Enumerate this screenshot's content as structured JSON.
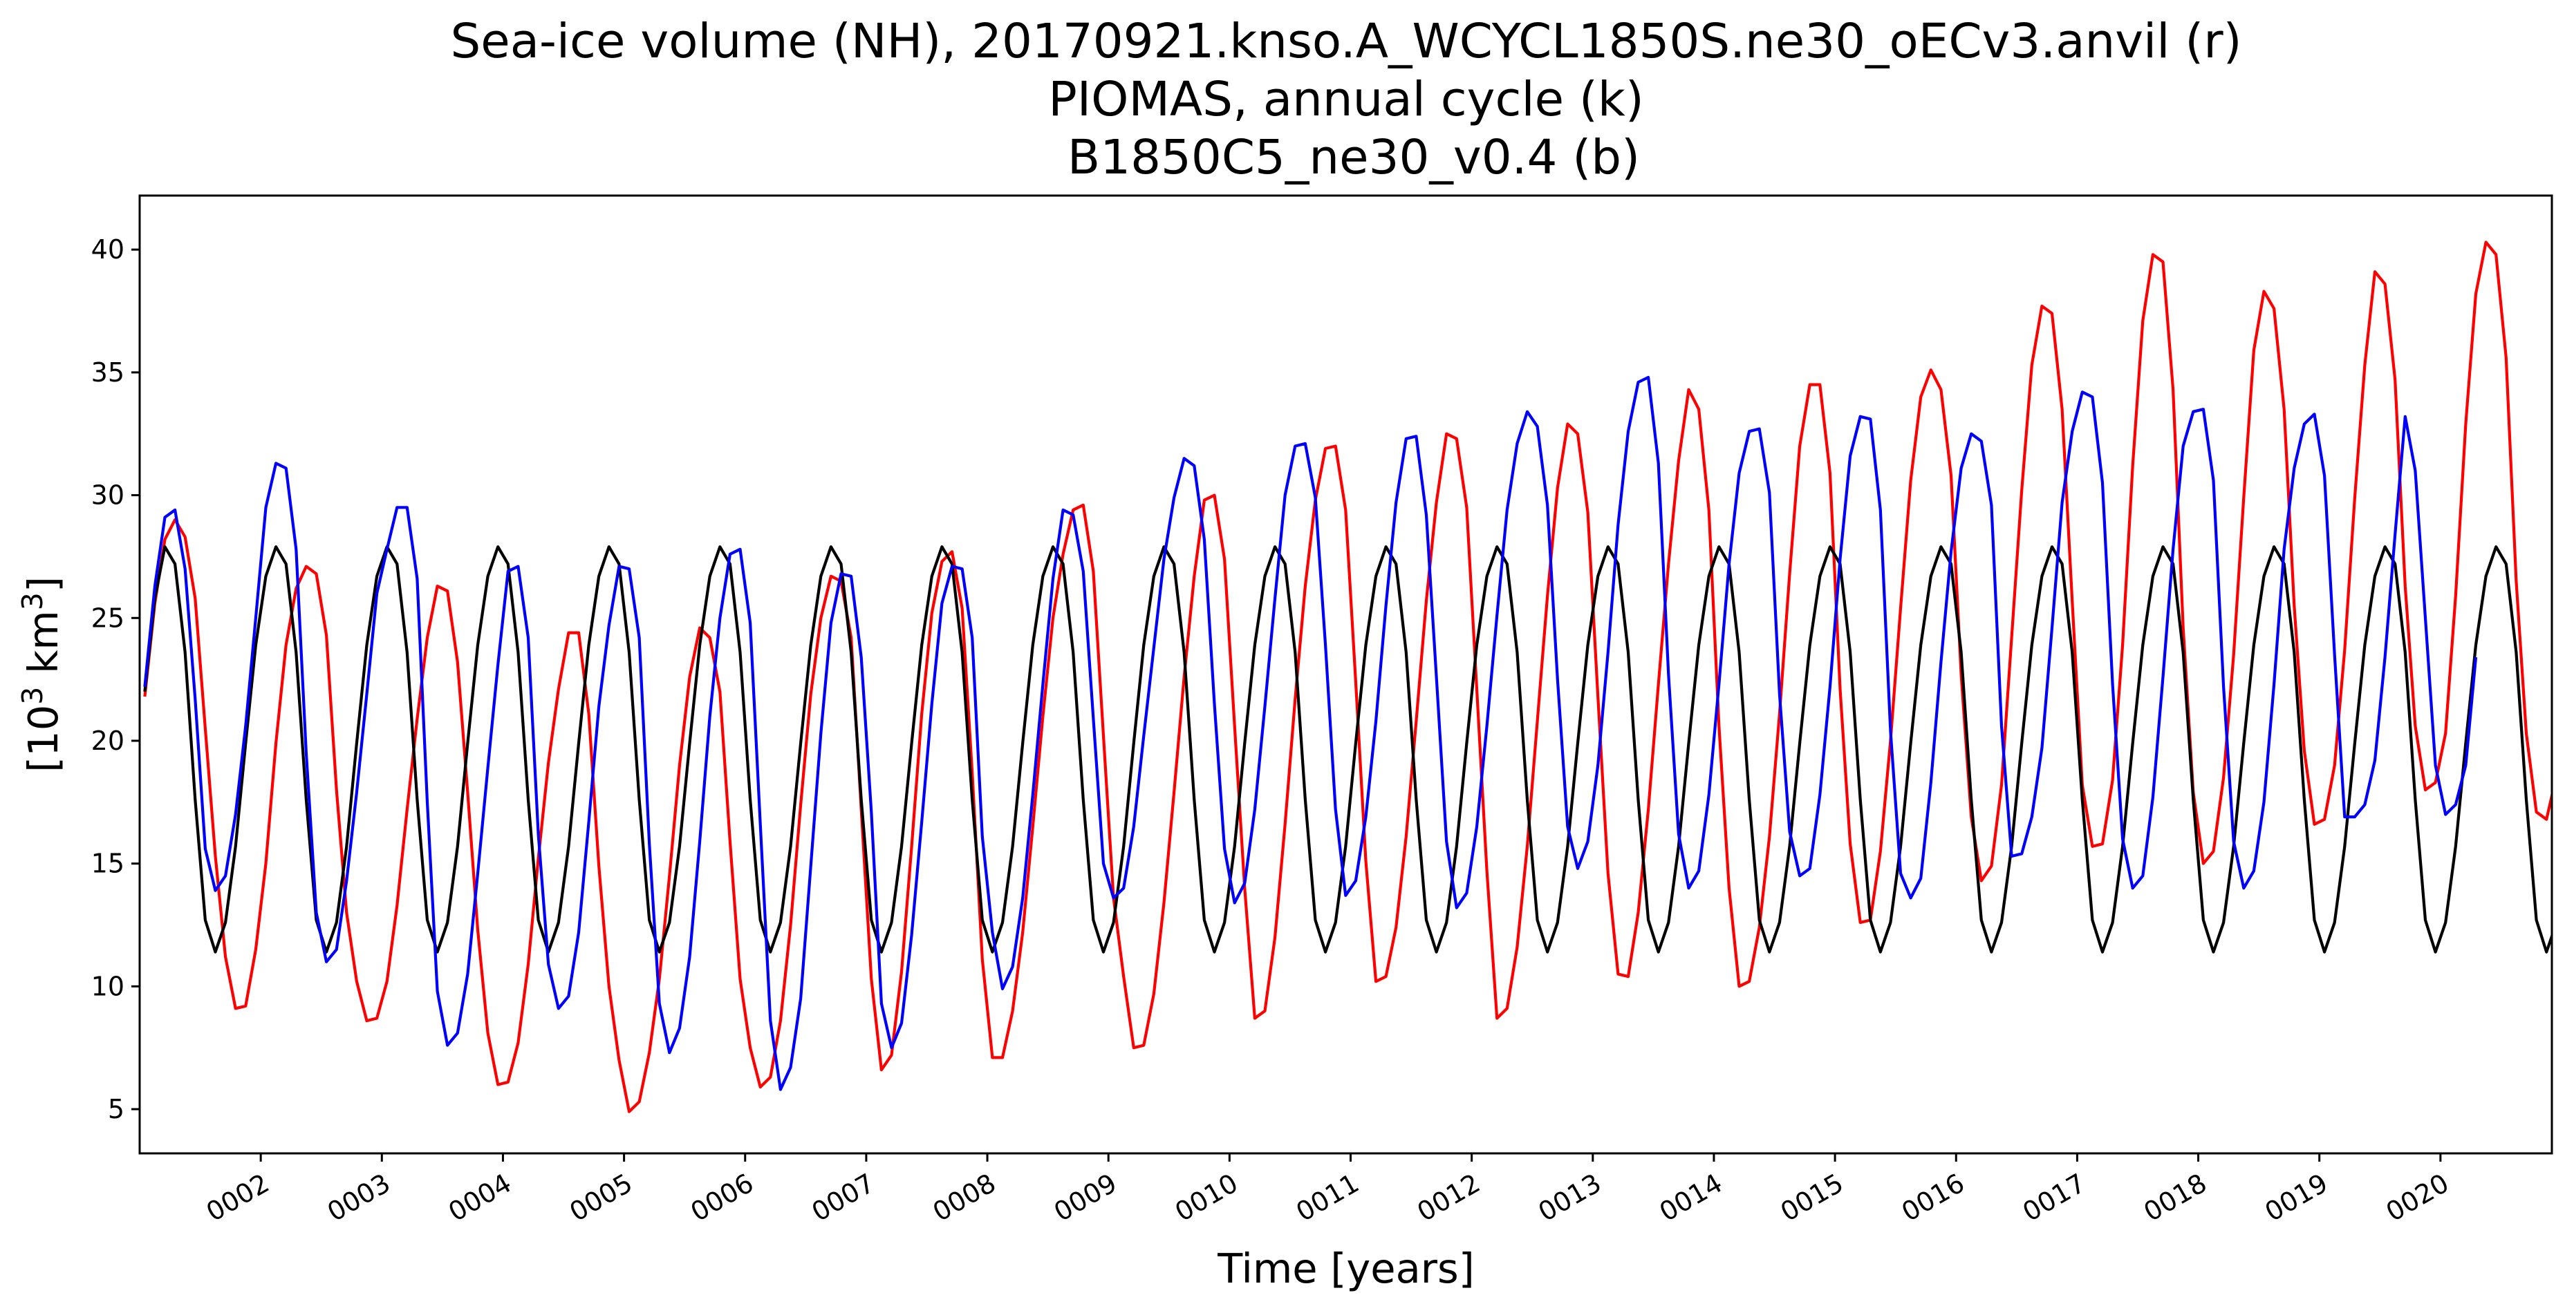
{
  "chart_data": {
    "type": "line",
    "title": [
      "Sea-ice volume (NH), 20170921.knso.A_WCYCL1850S.ne30_oECv3.anvil (r)",
      "PIOMAS, annual cycle (k)",
      " B1850C5_ne30_v0.4 (b)"
    ],
    "xlabel": "Time [years]",
    "ylabel": "[10³ km³]",
    "ylabel_parts": {
      "open": "[10",
      "exp1": "3",
      "mid": " km",
      "exp2": "3",
      "close": "]"
    },
    "xlim": [
      1.0,
      20.92
    ],
    "ylim": [
      3.2,
      42.2
    ],
    "x_ticks": [
      {
        "value": 2,
        "label": "0002"
      },
      {
        "value": 3,
        "label": "0003"
      },
      {
        "value": 4,
        "label": "0004"
      },
      {
        "value": 5,
        "label": "0005"
      },
      {
        "value": 6,
        "label": "0006"
      },
      {
        "value": 7,
        "label": "0007"
      },
      {
        "value": 8,
        "label": "0008"
      },
      {
        "value": 9,
        "label": "0009"
      },
      {
        "value": 10,
        "label": "0010"
      },
      {
        "value": 11,
        "label": "0011"
      },
      {
        "value": 12,
        "label": "0012"
      },
      {
        "value": 13,
        "label": "0013"
      },
      {
        "value": 14,
        "label": "0014"
      },
      {
        "value": 15,
        "label": "0015"
      },
      {
        "value": 16,
        "label": "0016"
      },
      {
        "value": 17,
        "label": "0017"
      },
      {
        "value": 18,
        "label": "0018"
      },
      {
        "value": 19,
        "label": "0019"
      },
      {
        "value": 20,
        "label": "0020"
      }
    ],
    "y_ticks": [
      {
        "value": 5,
        "label": "5"
      },
      {
        "value": 10,
        "label": "10"
      },
      {
        "value": 15,
        "label": "15"
      },
      {
        "value": 20,
        "label": "20"
      },
      {
        "value": 25,
        "label": "25"
      },
      {
        "value": 30,
        "label": "30"
      },
      {
        "value": 35,
        "label": "35"
      },
      {
        "value": 40,
        "label": "40"
      }
    ],
    "grid": false,
    "legend": "none",
    "series": [
      {
        "color": "#ff0000",
        "x_start": 1.042,
        "x_step": 0.0833333,
        "values": [
          21.8,
          25.6,
          28.2,
          29.0,
          28.3,
          25.8,
          20.5,
          15.3,
          11.2,
          9.1,
          9.2,
          11.5,
          15.0,
          19.9,
          23.9,
          26.2,
          27.1,
          26.8,
          24.3,
          18.0,
          13.0,
          10.2,
          8.6,
          8.7,
          10.2,
          13.3,
          17.2,
          20.9,
          24.2,
          26.3,
          26.1,
          23.2,
          17.9,
          12.3,
          8.1,
          6.0,
          6.1,
          7.7,
          10.9,
          15.2,
          19.1,
          22.1,
          24.4,
          24.4,
          21.1,
          14.9,
          10.0,
          7.0,
          4.9,
          5.3,
          7.3,
          10.3,
          14.5,
          19.0,
          22.6,
          24.6,
          24.2,
          22.0,
          15.9,
          10.3,
          7.5,
          5.9,
          6.3,
          8.6,
          12.5,
          17.4,
          21.9,
          25.0,
          26.7,
          26.5,
          24.2,
          17.2,
          10.3,
          6.6,
          7.2,
          10.6,
          15.7,
          21.1,
          25.2,
          27.3,
          27.7,
          25.4,
          18.7,
          11.1,
          7.1,
          7.1,
          9.0,
          12.2,
          16.5,
          21.0,
          25.0,
          27.6,
          29.4,
          29.6,
          26.9,
          20.2,
          13.6,
          10.4,
          7.5,
          7.6,
          9.7,
          13.4,
          17.9,
          22.6,
          26.7,
          29.8,
          30.0,
          27.4,
          20.6,
          14.0,
          8.7,
          9.0,
          12.0,
          16.6,
          21.7,
          26.3,
          29.8,
          31.9,
          32.0,
          29.4,
          22.4,
          15.1,
          10.2,
          10.4,
          12.4,
          16.1,
          20.8,
          25.7,
          29.7,
          32.5,
          32.3,
          29.5,
          22.1,
          14.7,
          8.7,
          9.1,
          11.6,
          15.7,
          20.8,
          25.9,
          30.3,
          32.9,
          32.5,
          29.3,
          21.8,
          14.6,
          10.5,
          10.4,
          13.0,
          17.2,
          22.3,
          27.2,
          31.4,
          34.3,
          33.5,
          29.4,
          20.6,
          14.0,
          10.0,
          10.2,
          12.4,
          16.1,
          21.1,
          26.8,
          32.0,
          34.5,
          34.5,
          30.9,
          22.1,
          15.8,
          12.6,
          12.7,
          15.5,
          20.0,
          25.4,
          30.6,
          34.0,
          35.1,
          34.3,
          30.8,
          22.7,
          16.9,
          14.3,
          14.9,
          18.2,
          24.2,
          30.2,
          35.3,
          37.7,
          37.4,
          33.5,
          25.7,
          18.2,
          15.7,
          15.8,
          18.4,
          23.9,
          31.2,
          37.1,
          39.8,
          39.5,
          34.3,
          24.6,
          17.9,
          15.0,
          15.5,
          18.5,
          23.5,
          29.9,
          35.9,
          38.3,
          37.6,
          33.5,
          25.5,
          19.6,
          16.6,
          16.8,
          19.0,
          23.7,
          29.9,
          35.3,
          39.1,
          38.6,
          34.7,
          26.3,
          20.6,
          18.0,
          18.3,
          20.3,
          25.9,
          32.9,
          38.2,
          40.3,
          39.8,
          35.6,
          26.5,
          20.3,
          17.1,
          16.8,
          18.6,
          21.8
        ]
      },
      {
        "color": "#000000",
        "x_start": 1.042,
        "x_step": 0.0833333,
        "values": [
          22.0,
          25.8,
          27.9,
          27.2,
          23.6,
          17.6,
          12.7,
          11.4,
          12.6,
          15.7,
          19.9,
          23.9,
          26.7,
          27.9,
          27.2,
          23.6,
          17.6,
          12.7,
          11.4,
          12.6,
          15.7,
          19.9,
          23.9,
          26.7,
          27.9,
          27.2,
          23.6,
          17.6,
          12.7,
          11.4,
          12.6,
          15.7,
          19.9,
          23.9,
          26.7,
          27.9,
          27.2,
          23.6,
          17.6,
          12.7,
          11.4,
          12.6,
          15.7,
          19.9,
          23.9,
          26.7,
          27.9,
          27.2,
          23.6,
          17.6,
          12.7,
          11.4,
          12.6,
          15.7,
          19.9,
          23.9,
          26.7,
          27.9,
          27.2,
          23.6,
          17.6,
          12.7,
          11.4,
          12.6,
          15.7,
          19.9,
          23.9,
          26.7,
          27.9,
          27.2,
          23.6,
          17.6,
          12.7,
          11.4,
          12.6,
          15.7,
          19.9,
          23.9,
          26.7,
          27.9,
          27.2,
          23.6,
          17.6,
          12.7,
          11.4,
          12.6,
          15.7,
          19.9,
          23.9,
          26.7,
          27.9,
          27.2,
          23.6,
          17.6,
          12.7,
          11.4,
          12.6,
          15.7,
          19.9,
          23.9,
          26.7,
          27.9,
          27.2,
          23.6,
          17.6,
          12.7,
          11.4,
          12.6,
          15.7,
          19.9,
          23.9,
          26.7,
          27.9,
          27.2,
          23.6,
          17.6,
          12.7,
          11.4,
          12.6,
          15.7,
          19.9,
          23.9,
          26.7,
          27.9,
          27.2,
          23.6,
          17.6,
          12.7,
          11.4,
          12.6,
          15.7,
          19.9,
          23.9,
          26.7,
          27.9,
          27.2,
          23.6,
          17.6,
          12.7,
          11.4,
          12.6,
          15.7,
          19.9,
          23.9,
          26.7,
          27.9,
          27.2,
          23.6,
          17.6,
          12.7,
          11.4,
          12.6,
          15.7,
          19.9,
          23.9,
          26.7,
          27.9,
          27.2,
          23.6,
          17.6,
          12.7,
          11.4,
          12.6,
          15.7,
          19.9,
          23.9,
          26.7,
          27.9,
          27.2,
          23.6,
          17.6,
          12.7,
          11.4,
          12.6,
          15.7,
          19.9,
          23.9,
          26.7,
          27.9,
          27.2,
          23.6,
          17.6,
          12.7,
          11.4,
          12.6,
          15.7,
          19.9,
          23.9,
          26.7,
          27.9,
          27.2,
          23.6,
          17.6,
          12.7,
          11.4,
          12.6,
          15.7,
          19.9,
          23.9,
          26.7,
          27.9,
          27.2,
          23.6,
          17.6,
          12.7,
          11.4,
          12.6,
          15.7,
          19.9,
          23.9,
          26.7,
          27.9,
          27.2,
          23.6,
          17.6,
          12.7,
          11.4,
          12.6,
          15.7,
          19.9,
          23.9,
          26.7,
          27.9,
          27.2,
          23.6,
          17.6,
          12.7,
          11.4,
          12.6,
          15.7,
          19.9,
          23.9,
          26.7,
          27.9,
          27.2,
          23.6,
          17.6,
          12.7,
          11.4,
          12.6,
          15.7,
          18.6
        ]
      },
      {
        "color": "#0000ff",
        "x_start": 1.042,
        "x_step": 0.0833333,
        "values": [
          22.2,
          26.3,
          29.1,
          29.4,
          27.0,
          21.7,
          15.6,
          13.9,
          14.5,
          17.0,
          20.6,
          25.0,
          29.5,
          31.3,
          31.1,
          27.8,
          19.5,
          13.0,
          11.0,
          11.5,
          14.3,
          17.9,
          21.9,
          26.0,
          27.8,
          29.5,
          29.5,
          26.6,
          17.5,
          9.8,
          7.6,
          8.1,
          10.5,
          14.6,
          18.9,
          23.1,
          26.9,
          27.1,
          24.2,
          16.2,
          10.9,
          9.1,
          9.6,
          12.2,
          16.7,
          21.4,
          24.7,
          27.1,
          27.0,
          24.2,
          15.8,
          9.3,
          7.3,
          8.3,
          11.2,
          15.9,
          21.0,
          25.0,
          27.6,
          27.8,
          24.8,
          16.6,
          8.6,
          5.8,
          6.7,
          9.5,
          14.9,
          20.3,
          24.8,
          26.8,
          26.7,
          23.4,
          17.1,
          9.3,
          7.5,
          8.5,
          12.1,
          16.7,
          21.5,
          25.6,
          27.1,
          27.0,
          24.2,
          16.1,
          12.2,
          9.9,
          10.8,
          13.6,
          17.8,
          22.3,
          26.6,
          29.4,
          29.2,
          26.9,
          20.9,
          15.0,
          13.6,
          14.0,
          16.5,
          20.2,
          23.8,
          27.4,
          29.9,
          31.5,
          31.2,
          28.2,
          21.5,
          15.6,
          13.4,
          14.2,
          17.2,
          21.4,
          25.8,
          30.0,
          32.0,
          32.1,
          29.9,
          23.9,
          17.2,
          13.7,
          14.3,
          16.9,
          20.8,
          25.5,
          29.7,
          32.3,
          32.4,
          29.2,
          22.6,
          15.9,
          13.2,
          13.8,
          16.5,
          20.6,
          25.1,
          29.4,
          32.1,
          33.4,
          32.8,
          29.6,
          22.5,
          16.5,
          14.8,
          15.9,
          19.0,
          23.6,
          28.8,
          32.6,
          34.6,
          34.8,
          31.3,
          22.7,
          16.2,
          14.0,
          14.7,
          17.8,
          22.3,
          27.2,
          30.9,
          32.6,
          32.7,
          30.1,
          21.9,
          16.3,
          14.5,
          14.8,
          17.8,
          22.2,
          27.4,
          31.6,
          33.2,
          33.1,
          29.4,
          20.4,
          14.6,
          13.6,
          14.4,
          18.3,
          23.2,
          27.7,
          31.1,
          32.5,
          32.2,
          29.6,
          20.6,
          15.3,
          15.4,
          16.9,
          19.7,
          24.6,
          29.7,
          32.6,
          34.2,
          34.0,
          30.5,
          22.3,
          16.0,
          14.0,
          14.5,
          17.7,
          22.6,
          27.8,
          32.0,
          33.4,
          33.5,
          30.6,
          22.2,
          15.9,
          14.0,
          14.7,
          17.5,
          22.3,
          27.8,
          31.1,
          32.9,
          33.3,
          30.8,
          23.5,
          16.9,
          16.9,
          17.4,
          19.2,
          23.4,
          28.4,
          33.2,
          31.0,
          25.0,
          19.0,
          17.0,
          17.4,
          19.0,
          23.4
        ]
      }
    ]
  }
}
